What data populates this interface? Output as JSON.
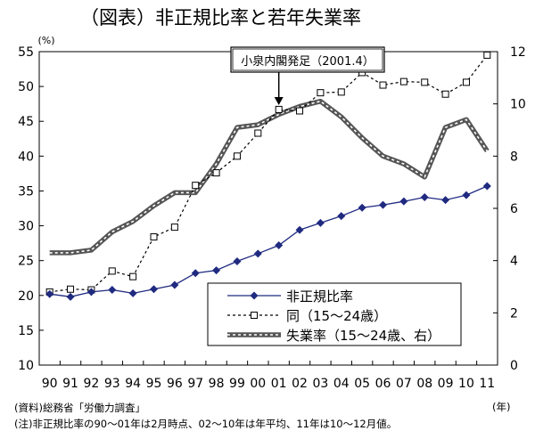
{
  "title": "（図表）非正規比率と若年失業率",
  "notes": {
    "source": "(資料)総務省「労働力調査」",
    "note": "(注)非正規比率の90～01年は2月時点、02～10年は年平均、11年は10～12月値。",
    "year_unit": "(年)"
  },
  "chart_data": {
    "type": "line",
    "categories": [
      "90",
      "91",
      "92",
      "93",
      "94",
      "95",
      "96",
      "97",
      "98",
      "99",
      "00",
      "01",
      "02",
      "03",
      "04",
      "05",
      "06",
      "07",
      "08",
      "09",
      "10",
      "11"
    ],
    "y_left": {
      "unit": "(%)",
      "range": [
        10,
        55
      ],
      "ticks": [
        10,
        15,
        20,
        25,
        30,
        35,
        40,
        45,
        50,
        55
      ]
    },
    "y_right": {
      "range": [
        0,
        12
      ],
      "ticks": [
        0,
        2,
        4,
        6,
        8,
        10,
        12
      ]
    },
    "annotation": {
      "label": "小泉内閣発足（2001.4）",
      "x": "01"
    },
    "series": [
      {
        "name": "非正規比率",
        "axis": "left",
        "color": "#1f2a80",
        "x": [
          1990,
          1991,
          1992,
          1993,
          1994,
          1995,
          1996,
          1997,
          1998,
          1999,
          2000,
          2001,
          2002,
          2003,
          2004,
          2005,
          2006,
          2007,
          2008,
          2009,
          2010,
          2011
        ],
        "values": [
          20.2,
          19.8,
          20.5,
          20.8,
          20.3,
          20.9,
          21.5,
          23.2,
          23.6,
          24.9,
          26.0,
          27.2,
          29.4,
          30.4,
          31.4,
          32.6,
          33.0,
          33.5,
          34.1,
          33.7,
          34.4,
          35.7
        ]
      },
      {
        "name": "同（15～24歳）",
        "axis": "left",
        "color": "#000000",
        "x": [
          1990,
          1991,
          1992,
          1993,
          1994,
          1995,
          1996,
          1997,
          1998,
          1999,
          2000,
          2001,
          2002,
          2003,
          2004,
          2005,
          2006,
          2007,
          2008,
          2009,
          2010,
          2011
        ],
        "values": [
          20.5,
          20.9,
          20.8,
          23.5,
          22.7,
          28.4,
          29.8,
          35.8,
          37.6,
          40.0,
          43.3,
          46.7,
          46.5,
          49.1,
          49.2,
          52.0,
          50.2,
          50.7,
          50.6,
          48.9,
          50.6,
          54.5
        ]
      },
      {
        "name": "失業率（15～24歳、右）",
        "axis": "right",
        "color": "#555555",
        "x": [
          1990,
          1991,
          1992,
          1993,
          1994,
          1995,
          1996,
          1997,
          1998,
          1999,
          2000,
          2001,
          2002,
          2003,
          2004,
          2005,
          2006,
          2007,
          2008,
          2009,
          2010,
          2011
        ],
        "values": [
          4.3,
          4.3,
          4.4,
          5.1,
          5.5,
          6.1,
          6.6,
          6.6,
          7.7,
          9.1,
          9.2,
          9.6,
          9.9,
          10.1,
          9.5,
          8.7,
          8.0,
          7.7,
          7.2,
          9.1,
          9.4,
          8.2
        ]
      }
    ],
    "grid": false,
    "legend_position": "bottom-right"
  }
}
